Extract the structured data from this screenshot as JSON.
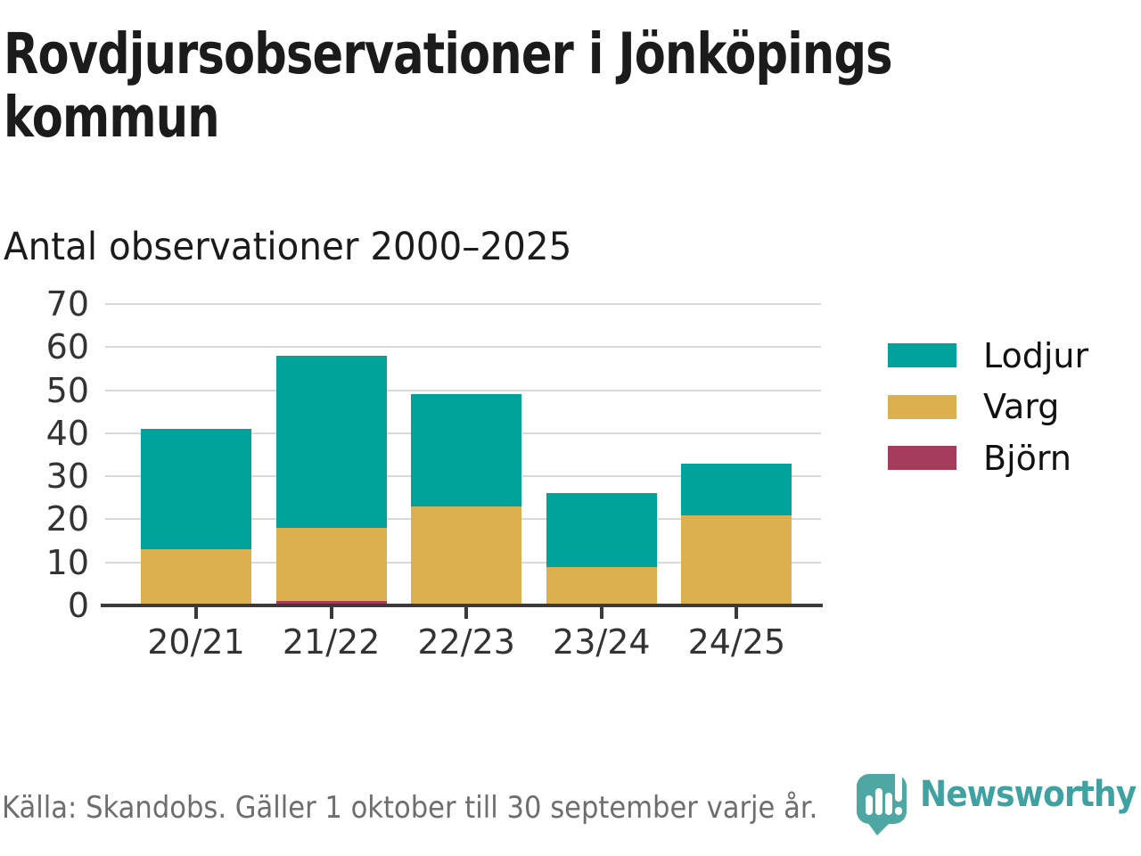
{
  "title": "Rovdjursobservationer i Jönköpings kommun",
  "subtitle": "Antal observationer 2000–2025",
  "source": "Källa: Skandobs. Gäller 1 oktober till 30 september varje år.",
  "branding": {
    "name": "Newsworthy",
    "bubble_color": "#4ea7a2",
    "text_color": "#3fa2a1"
  },
  "colors": {
    "title_text": "#1b1b1b",
    "axis_text": "#333333",
    "gridline": "#d9d9d9",
    "axis_line": "#3a3a3a",
    "source_text": "#6e6e6e"
  },
  "chart_data": {
    "type": "bar",
    "stacked": true,
    "title": "Rovdjursobservationer i Jönköpings kommun",
    "subtitle": "Antal observationer 2000–2025",
    "categories": [
      "20/21",
      "21/22",
      "22/23",
      "23/24",
      "24/25"
    ],
    "series": [
      {
        "name": "Björn",
        "color": "#a63c5c",
        "values": [
          0,
          1,
          0,
          0,
          0
        ]
      },
      {
        "name": "Varg",
        "color": "#dcb04f",
        "values": [
          13,
          17,
          23,
          9,
          21
        ]
      },
      {
        "name": "Lodjur",
        "color": "#00a39b",
        "values": [
          28,
          40,
          26,
          17,
          12
        ]
      }
    ],
    "totals": [
      41,
      58,
      49,
      26,
      33
    ],
    "ylim": [
      0,
      70
    ],
    "yticks": [
      0,
      10,
      20,
      30,
      40,
      50,
      60,
      70
    ],
    "xlabel": "",
    "ylabel": "",
    "grid": true,
    "legend_position": "right",
    "legend_order": [
      "Lodjur",
      "Varg",
      "Björn"
    ]
  }
}
